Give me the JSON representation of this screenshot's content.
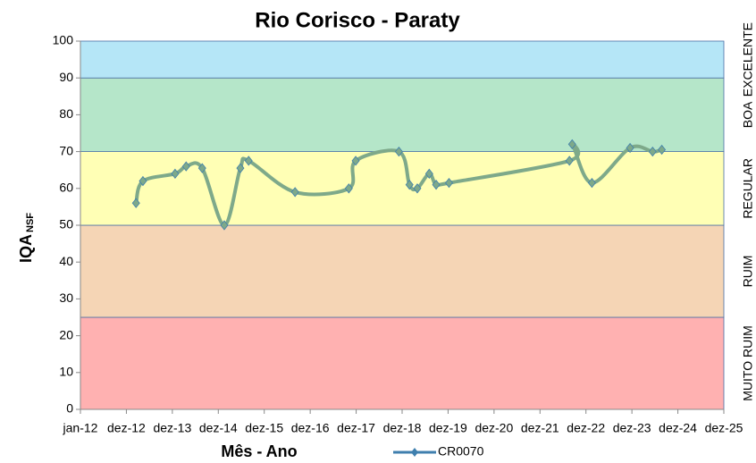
{
  "chart_data": {
    "type": "line",
    "title": "Rio Corisco - Paraty",
    "x_label": "Mês - Ano",
    "y_label": "IQA",
    "y_label_subscript": "NSF",
    "xlim": [
      0,
      14
    ],
    "xticks": [
      {
        "value": 0,
        "label": "jan-12"
      },
      {
        "value": 1,
        "label": "dez-12"
      },
      {
        "value": 2,
        "label": "dez-13"
      },
      {
        "value": 3,
        "label": "dez-14"
      },
      {
        "value": 4,
        "label": "dez-15"
      },
      {
        "value": 5,
        "label": "dez-16"
      },
      {
        "value": 6,
        "label": "dez-17"
      },
      {
        "value": 7,
        "label": "dez-18"
      },
      {
        "value": 8,
        "label": "dez-19"
      },
      {
        "value": 9,
        "label": "dez-20"
      },
      {
        "value": 10,
        "label": "dez-21"
      },
      {
        "value": 11,
        "label": "dez-22"
      },
      {
        "value": 12,
        "label": "dez-23"
      },
      {
        "value": 13,
        "label": "dez-24"
      },
      {
        "value": 14,
        "label": "dez-25"
      }
    ],
    "ylim": [
      0,
      100
    ],
    "yticks": [
      0,
      10,
      20,
      30,
      40,
      50,
      60,
      70,
      80,
      90,
      100
    ],
    "bands": [
      {
        "label": "MUITO RUIM",
        "from": 0,
        "to": 25,
        "color": "#ffb1b1"
      },
      {
        "label": "RUIM",
        "from": 25,
        "to": 50,
        "color": "#f5d5b5"
      },
      {
        "label": "REGULAR",
        "from": 50,
        "to": 70,
        "color": "#ffffb5"
      },
      {
        "label": "BOA",
        "from": 70,
        "to": 90,
        "color": "#b5e6c9"
      },
      {
        "label": "EXCELENTE",
        "from": 90,
        "to": 100,
        "color": "#b5e6f7"
      }
    ],
    "series": [
      {
        "name": "CR0070",
        "color": "#3f7fae",
        "line_color": "#7ea98a",
        "x": [
          1.21,
          1.36,
          2.06,
          2.3,
          2.65,
          3.13,
          3.48,
          3.66,
          4.67,
          5.84,
          5.99,
          6.93,
          7.16,
          7.33,
          7.59,
          7.74,
          8.02,
          10.64,
          10.7,
          11.13,
          11.96,
          12.45,
          12.65
        ],
        "values": [
          56,
          62,
          64,
          66,
          65.5,
          50,
          65.5,
          67.5,
          59,
          60,
          67.5,
          70,
          61,
          60,
          64,
          61,
          61.5,
          67.5,
          72,
          61.5,
          71,
          70,
          70.5
        ]
      }
    ]
  }
}
